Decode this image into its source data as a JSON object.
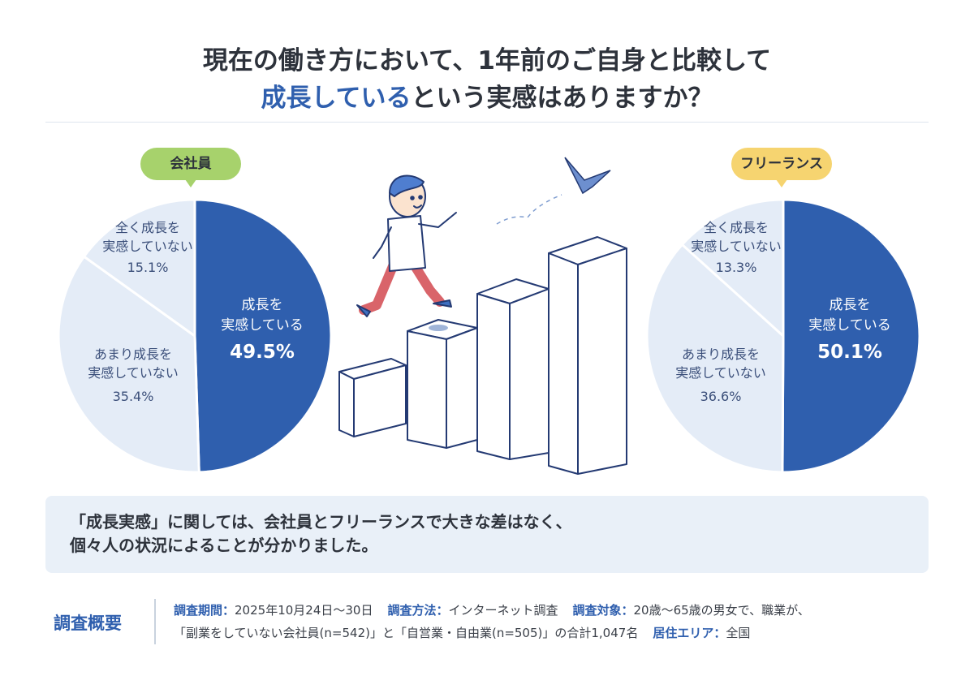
{
  "title": {
    "line1": "現在の働き方において、1年前のご自身と比較して",
    "line2_accent": "成長している",
    "line2_rest": "という実感はありますか？"
  },
  "chart_data": [
    {
      "type": "pie",
      "group": "会社員",
      "categories": [
        "成長を実感している",
        "あまり成長を実感していない",
        "全く成長を実感していない"
      ],
      "values": [
        49.5,
        35.4,
        15.1
      ],
      "labels": [
        {
          "line1": "成長を",
          "line2": "実感している",
          "pct": "49.5%"
        },
        {
          "line1": "あまり成長を",
          "line2": "実感していない",
          "pct": "35.4%"
        },
        {
          "line1": "全く成長を",
          "line2": "実感していない",
          "pct": "15.1%"
        }
      ],
      "colors": [
        "#2f5fae",
        "#e4ecf7",
        "#e4ecf7"
      ]
    },
    {
      "type": "pie",
      "group": "フリーランス",
      "categories": [
        "成長を実感している",
        "あまり成長を実感していない",
        "全く成長を実感していない"
      ],
      "values": [
        50.1,
        36.6,
        13.3
      ],
      "labels": [
        {
          "line1": "成長を",
          "line2": "実感している",
          "pct": "50.1%"
        },
        {
          "line1": "あまり成長を",
          "line2": "実感していない",
          "pct": "36.6%"
        },
        {
          "line1": "全く成長を",
          "line2": "実感していない",
          "pct": "13.3%"
        }
      ],
      "colors": [
        "#2f5fae",
        "#e4ecf7",
        "#e4ecf7"
      ]
    }
  ],
  "summary": {
    "line1": "「成長実感」に関しては、会社員とフリーランスで大きな差はなく、",
    "line2": "個々人の状況によることが分かりました。"
  },
  "overview": {
    "label": "調査概要",
    "period_key": "調査期間：",
    "period_val": "2025年10月24日〜30日",
    "method_key": "調査方法：",
    "method_val": "インターネット調査",
    "target_key": "調査対象：",
    "target_val": "20歳〜65歳の男女で、職業が、",
    "line2_val": "「副業をしていない会社員(n=542)」と「自営業・自由業(n=505)」の合計1,047名",
    "area_key": "居住エリア：",
    "area_val": "全国"
  }
}
